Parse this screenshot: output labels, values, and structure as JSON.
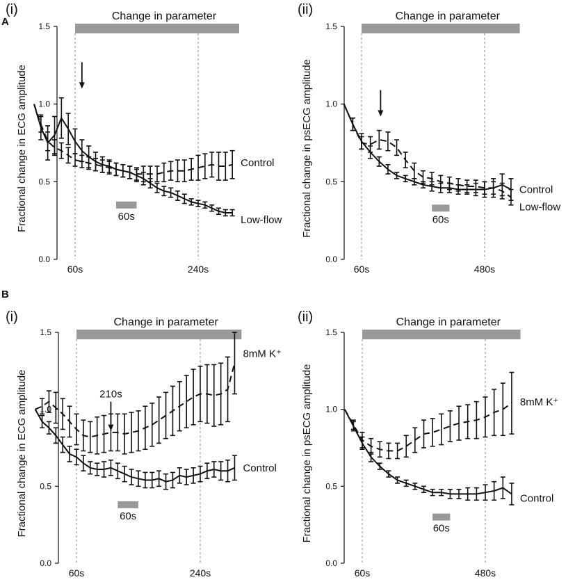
{
  "section_labels": [
    "A",
    "B"
  ],
  "chart_data": [
    {
      "type": "line",
      "panel": "(i)",
      "title": "Change in parameter",
      "ylabel": "Fractional change in ECG amplitude",
      "ylim": [
        0,
        1.5
      ],
      "xlim": [
        0,
        300
      ],
      "yticks": [
        "0.0",
        "0.5",
        "1.0",
        "1.5"
      ],
      "ytick_values": [
        0,
        0.5,
        1,
        1.5
      ],
      "xticks": [
        "60s",
        "240s"
      ],
      "xtick_values": [
        60,
        240
      ],
      "dashed_lines_at": [
        60,
        240
      ],
      "parameter_bar": [
        60,
        300
      ],
      "scale_bar": {
        "label": "60s",
        "from": 120,
        "to": 150,
        "y": 0.35
      },
      "arrow": {
        "x": 70,
        "y_from": 1.27,
        "y_to": 1.1,
        "label": ""
      },
      "series": [
        {
          "name": "Control",
          "style": "dashed",
          "x": [
            0,
            10,
            20,
            30,
            40,
            50,
            60,
            70,
            80,
            90,
            100,
            110,
            120,
            130,
            140,
            150,
            160,
            170,
            180,
            190,
            200,
            210,
            220,
            230,
            240,
            250,
            260,
            270,
            280,
            290
          ],
          "values": [
            1.0,
            0.87,
            0.76,
            0.72,
            0.7,
            0.67,
            0.64,
            0.63,
            0.62,
            0.61,
            0.6,
            0.59,
            0.58,
            0.57,
            0.56,
            0.55,
            0.55,
            0.55,
            0.55,
            0.56,
            0.57,
            0.57,
            0.57,
            0.58,
            0.59,
            0.6,
            0.61,
            0.6,
            0.6,
            0.61
          ],
          "errors": [
            0,
            0.05,
            0.06,
            0.05,
            0.05,
            0.05,
            0.04,
            0.04,
            0.04,
            0.04,
            0.04,
            0.04,
            0.04,
            0.04,
            0.04,
            0.04,
            0.05,
            0.05,
            0.05,
            0.06,
            0.06,
            0.07,
            0.07,
            0.07,
            0.08,
            0.08,
            0.08,
            0.09,
            0.09,
            0.09
          ]
        },
        {
          "name": "Low-flow",
          "style": "solid",
          "x": [
            0,
            10,
            20,
            30,
            40,
            50,
            60,
            70,
            80,
            90,
            100,
            110,
            120,
            130,
            140,
            150,
            160,
            170,
            180,
            190,
            200,
            210,
            220,
            230,
            240,
            250,
            260,
            270,
            280,
            290
          ],
          "values": [
            1.0,
            0.85,
            0.75,
            0.8,
            0.91,
            0.84,
            0.76,
            0.7,
            0.66,
            0.63,
            0.61,
            0.6,
            0.58,
            0.57,
            0.56,
            0.54,
            0.52,
            0.49,
            0.46,
            0.44,
            0.43,
            0.41,
            0.39,
            0.37,
            0.36,
            0.35,
            0.33,
            0.31,
            0.3,
            0.3
          ],
          "errors": [
            0,
            0.08,
            0.11,
            0.12,
            0.13,
            0.1,
            0.08,
            0.07,
            0.07,
            0.06,
            0.05,
            0.04,
            0.04,
            0.04,
            0.04,
            0.04,
            0.04,
            0.03,
            0.03,
            0.03,
            0.03,
            0.03,
            0.03,
            0.02,
            0.02,
            0.02,
            0.02,
            0.02,
            0.02,
            0.02
          ]
        }
      ]
    },
    {
      "type": "line",
      "panel": "(ii)",
      "title": "Change in parameter",
      "ylabel": "Fractional change in psECG amplitude",
      "ylim": [
        0,
        1.5
      ],
      "xlim": [
        0,
        600
      ],
      "yticks": [
        "0.0",
        "0.5",
        "1.0",
        "1.5"
      ],
      "ytick_values": [
        0,
        0.5,
        1,
        1.5
      ],
      "xticks": [
        "60s",
        "480s"
      ],
      "xtick_values": [
        60,
        480
      ],
      "dashed_lines_at": [
        60,
        480
      ],
      "parameter_bar": [
        60,
        600
      ],
      "scale_bar": {
        "label": "60s",
        "from": 300,
        "to": 360,
        "y": 0.33
      },
      "arrow": {
        "x": 125,
        "y_from": 1.09,
        "y_to": 0.92,
        "label": ""
      },
      "series": [
        {
          "name": "Control",
          "style": "solid",
          "x": [
            0,
            30,
            60,
            90,
            120,
            150,
            180,
            210,
            240,
            270,
            300,
            330,
            360,
            390,
            420,
            450,
            480,
            510,
            540,
            570
          ],
          "values": [
            1.0,
            0.87,
            0.76,
            0.69,
            0.63,
            0.58,
            0.54,
            0.52,
            0.5,
            0.48,
            0.47,
            0.46,
            0.46,
            0.45,
            0.45,
            0.45,
            0.45,
            0.46,
            0.48,
            0.45
          ],
          "errors": [
            0,
            0.04,
            0.05,
            0.04,
            0.03,
            0.03,
            0.02,
            0.02,
            0.02,
            0.02,
            0.03,
            0.03,
            0.03,
            0.03,
            0.03,
            0.04,
            0.05,
            0.06,
            0.07,
            0.07
          ]
        },
        {
          "name": "Low-flow",
          "style": "dashed",
          "x": [
            0,
            30,
            60,
            90,
            120,
            150,
            180,
            210,
            240,
            270,
            300,
            330,
            360,
            390,
            420,
            450,
            480,
            510,
            540,
            570
          ],
          "values": [
            1.0,
            0.87,
            0.75,
            0.74,
            0.77,
            0.76,
            0.72,
            0.64,
            0.57,
            0.53,
            0.52,
            0.5,
            0.49,
            0.48,
            0.47,
            0.47,
            0.46,
            0.46,
            0.44,
            0.4
          ],
          "errors": [
            0,
            0.04,
            0.04,
            0.05,
            0.06,
            0.06,
            0.05,
            0.05,
            0.05,
            0.04,
            0.04,
            0.04,
            0.04,
            0.04,
            0.04,
            0.04,
            0.04,
            0.04,
            0.05,
            0.05
          ]
        }
      ]
    },
    {
      "type": "line",
      "panel": "(i)",
      "title": "Change in parameter",
      "ylabel": "Fractional change in ECG amplitude",
      "ylim": [
        0,
        1.5
      ],
      "xlim": [
        0,
        300
      ],
      "yticks": [
        "0.0",
        "0.5",
        "1.0",
        "1.5"
      ],
      "ytick_values": [
        0,
        0.5,
        1,
        1.5
      ],
      "xticks": [
        "60s",
        "240s"
      ],
      "xtick_values": [
        60,
        240
      ],
      "dashed_lines_at": [
        60,
        240
      ],
      "parameter_bar": [
        60,
        300
      ],
      "scale_bar": {
        "label": "60s",
        "from": 120,
        "to": 150,
        "y": 0.38
      },
      "arrow": {
        "x": 110,
        "y_from": 1.05,
        "y_to": 0.86,
        "label": "210s"
      },
      "series": [
        {
          "name": "Control",
          "style": "solid",
          "x": [
            0,
            10,
            20,
            30,
            40,
            50,
            60,
            70,
            80,
            90,
            100,
            110,
            120,
            130,
            140,
            150,
            160,
            170,
            180,
            190,
            200,
            210,
            220,
            230,
            240,
            250,
            260,
            270,
            280,
            290
          ],
          "values": [
            1.0,
            0.92,
            0.88,
            0.83,
            0.77,
            0.71,
            0.69,
            0.65,
            0.62,
            0.61,
            0.61,
            0.62,
            0.6,
            0.58,
            0.56,
            0.55,
            0.54,
            0.54,
            0.55,
            0.53,
            0.54,
            0.57,
            0.56,
            0.57,
            0.58,
            0.6,
            0.61,
            0.6,
            0.6,
            0.62
          ],
          "errors": [
            0,
            0.04,
            0.04,
            0.05,
            0.05,
            0.05,
            0.05,
            0.05,
            0.04,
            0.04,
            0.05,
            0.05,
            0.05,
            0.05,
            0.05,
            0.05,
            0.05,
            0.05,
            0.05,
            0.05,
            0.05,
            0.05,
            0.05,
            0.05,
            0.05,
            0.05,
            0.05,
            0.06,
            0.07,
            0.08
          ]
        },
        {
          "name": "8mM K⁺",
          "style": "dashed",
          "x": [
            0,
            10,
            20,
            30,
            40,
            50,
            60,
            70,
            80,
            90,
            100,
            110,
            120,
            130,
            140,
            150,
            160,
            170,
            180,
            190,
            200,
            210,
            220,
            230,
            240,
            250,
            260,
            270,
            280,
            290
          ],
          "values": [
            1.0,
            1.02,
            1.05,
            1.01,
            0.97,
            0.92,
            0.87,
            0.83,
            0.82,
            0.83,
            0.84,
            0.85,
            0.85,
            0.84,
            0.85,
            0.86,
            0.88,
            0.9,
            0.93,
            0.96,
            0.99,
            1.02,
            1.05,
            1.08,
            1.1,
            1.1,
            1.09,
            1.1,
            1.13,
            1.3
          ],
          "errors": [
            0,
            0.05,
            0.07,
            0.1,
            0.1,
            0.1,
            0.1,
            0.1,
            0.1,
            0.12,
            0.12,
            0.12,
            0.12,
            0.13,
            0.13,
            0.13,
            0.14,
            0.14,
            0.15,
            0.15,
            0.16,
            0.16,
            0.17,
            0.18,
            0.18,
            0.19,
            0.2,
            0.2,
            0.21,
            0.2
          ]
        }
      ]
    },
    {
      "type": "line",
      "panel": "(ii)",
      "title": "Change in parameter",
      "ylabel": "Fractional change in psECG amplitude",
      "ylim": [
        0,
        1.5
      ],
      "xlim": [
        0,
        600
      ],
      "yticks": [
        "0.0",
        "0.5",
        "1.0",
        "1.5"
      ],
      "ytick_values": [
        0,
        0.5,
        1,
        1.5
      ],
      "xticks": [
        "60s",
        "480s"
      ],
      "xtick_values": [
        60,
        480
      ],
      "dashed_lines_at": [
        60,
        480
      ],
      "parameter_bar": [
        60,
        600
      ],
      "scale_bar": {
        "label": "60s",
        "from": 300,
        "to": 360,
        "y": 0.3
      },
      "arrow": null,
      "series": [
        {
          "name": "Control",
          "style": "solid",
          "x": [
            0,
            30,
            60,
            90,
            120,
            150,
            180,
            210,
            240,
            270,
            300,
            330,
            360,
            390,
            420,
            450,
            480,
            510,
            540,
            570
          ],
          "values": [
            1.0,
            0.89,
            0.78,
            0.69,
            0.63,
            0.58,
            0.54,
            0.52,
            0.5,
            0.48,
            0.46,
            0.46,
            0.45,
            0.45,
            0.45,
            0.45,
            0.46,
            0.47,
            0.49,
            0.45
          ],
          "errors": [
            0,
            0.03,
            0.04,
            0.03,
            0.02,
            0.02,
            0.02,
            0.02,
            0.02,
            0.02,
            0.02,
            0.02,
            0.03,
            0.03,
            0.04,
            0.04,
            0.05,
            0.06,
            0.07,
            0.07
          ]
        },
        {
          "name": "8mM K⁺",
          "style": "dashed",
          "x": [
            0,
            30,
            60,
            90,
            120,
            150,
            180,
            210,
            240,
            270,
            300,
            330,
            360,
            390,
            420,
            450,
            480,
            510,
            540,
            570
          ],
          "values": [
            1.0,
            0.9,
            0.8,
            0.76,
            0.74,
            0.73,
            0.73,
            0.76,
            0.8,
            0.84,
            0.85,
            0.87,
            0.89,
            0.91,
            0.92,
            0.93,
            0.95,
            0.98,
            1.0,
            1.04
          ],
          "errors": [
            0,
            0.03,
            0.05,
            0.05,
            0.05,
            0.05,
            0.05,
            0.07,
            0.08,
            0.09,
            0.09,
            0.1,
            0.1,
            0.11,
            0.11,
            0.12,
            0.13,
            0.15,
            0.17,
            0.2
          ]
        }
      ]
    }
  ]
}
